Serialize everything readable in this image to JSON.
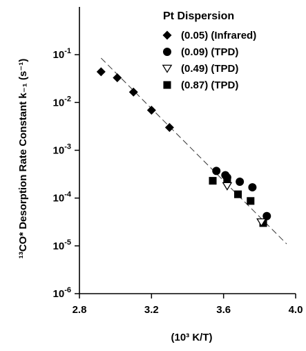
{
  "chart_data": {
    "type": "scatter",
    "title": "",
    "xlabel": "(10³ K/T)",
    "ylabel": "¹³CO* Desorption Rate Constant k₋₁ (s⁻¹)",
    "xlim": [
      2.8,
      4.0
    ],
    "ylim": [
      1e-06,
      1.0
    ],
    "yscale": "log",
    "x_ticks": [
      2.8,
      3.2,
      3.6,
      4.0
    ],
    "x_tick_labels": [
      "2.8",
      "3.2",
      "3.6",
      "4.0"
    ],
    "y_ticks": [
      1e-06,
      1e-05,
      0.0001,
      0.001,
      0.01,
      0.1
    ],
    "y_tick_labels": [
      {
        "base": "10",
        "exp": "-6"
      },
      {
        "base": "10",
        "exp": "-5"
      },
      {
        "base": "10",
        "exp": "-4"
      },
      {
        "base": "10",
        "exp": "-3"
      },
      {
        "base": "10",
        "exp": "-2"
      },
      {
        "base": "10",
        "exp": "-1"
      }
    ],
    "grid": false,
    "legend_title": "Pt Dispersion",
    "legend_position": "top-right",
    "series": [
      {
        "name": "(0.05) (Infrared)",
        "marker": "diamond",
        "x": [
          2.92,
          3.01,
          3.1,
          3.2,
          3.3
        ],
        "y": [
          0.044,
          0.033,
          0.0165,
          0.0069,
          0.003
        ]
      },
      {
        "name": "(0.09) (TPD)",
        "marker": "circle",
        "x": [
          3.56,
          3.61,
          3.62,
          3.69,
          3.76,
          3.84
        ],
        "y": [
          0.00037,
          0.0003,
          0.00027,
          0.00022,
          0.000168,
          4.2e-05
        ]
      },
      {
        "name": "(0.49) (TPD)",
        "marker": "triangle-down-open",
        "x": [
          3.62,
          3.81
        ],
        "y": [
          0.00018,
          3.15e-05
        ]
      },
      {
        "name": "(0.87) (TPD)",
        "marker": "square",
        "x": [
          3.54,
          3.62,
          3.68,
          3.75,
          3.82
        ],
        "y": [
          0.00023,
          0.00024,
          0.00012,
          8.7e-05,
          3e-05
        ]
      }
    ],
    "fit_line": {
      "style": "dashed",
      "x": [
        2.92,
        3.95
      ],
      "y": [
        0.085,
        1.1e-05
      ]
    }
  }
}
